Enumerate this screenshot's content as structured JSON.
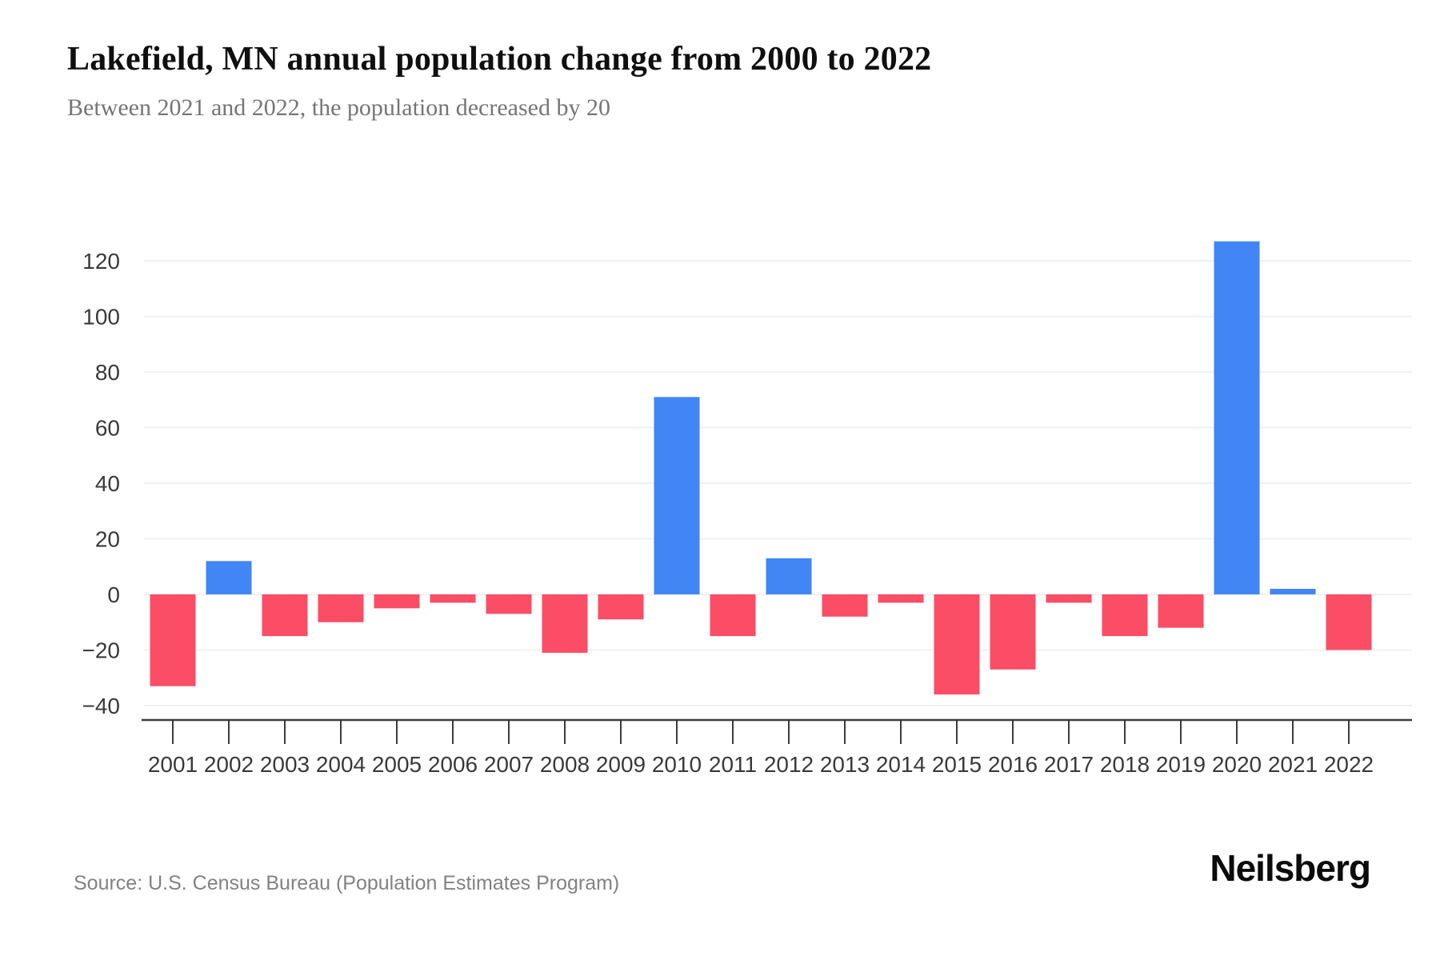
{
  "header": {
    "title": "Lakefield, MN annual population change from 2000 to 2022",
    "subtitle": "Between 2021 and 2022, the population decreased by 20"
  },
  "chart_data": {
    "type": "bar",
    "title": "Lakefield, MN annual population change from 2000 to 2022",
    "subtitle": "Between 2021 and 2022, the population decreased by 20",
    "categories": [
      "2001",
      "2002",
      "2003",
      "2004",
      "2005",
      "2006",
      "2007",
      "2008",
      "2009",
      "2010",
      "2011",
      "2012",
      "2013",
      "2014",
      "2015",
      "2016",
      "2017",
      "2018",
      "2019",
      "2020",
      "2021",
      "2022"
    ],
    "values": [
      -33,
      12,
      -15,
      -10,
      -5,
      -3,
      -7,
      -21,
      -9,
      71,
      -15,
      13,
      -8,
      -3,
      -36,
      -27,
      -3,
      -15,
      -12,
      127,
      2,
      -20
    ],
    "xlabel": "",
    "ylabel": "",
    "y_ticks": [
      -40,
      -20,
      0,
      20,
      40,
      60,
      80,
      100,
      120
    ],
    "ylim": [
      -45,
      139
    ],
    "grid": "horizontal-only",
    "legend": "none",
    "colors": {
      "positive": "#4285F4",
      "negative": "#FB4D66",
      "gridline": "#f1f1f1",
      "axis": "#3c3c3c",
      "tick_label": "#3a3a3a"
    }
  },
  "footer": {
    "source": "Source: U.S. Census Bureau (Population Estimates Program)",
    "brand": "Neilsberg"
  }
}
